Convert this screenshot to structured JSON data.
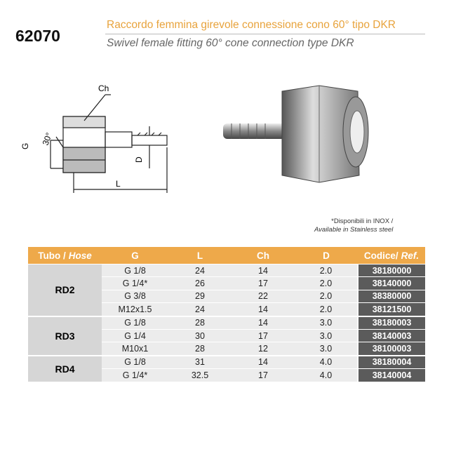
{
  "header": {
    "code": "62070",
    "title_it": "Raccordo femmina girevole connessione cono 60° tipo DKR",
    "title_en": "Swivel female fitting  60° cone connection type DKR"
  },
  "drawing": {
    "ch": "Ch",
    "g": "G",
    "angle": "30°",
    "d": "D",
    "l": "L"
  },
  "note": {
    "it": "*Disponibili in INOX /",
    "en": "Available in Stainless steel"
  },
  "table": {
    "header": [
      [
        "Tubo /",
        "Hose"
      ],
      [
        "G"
      ],
      [
        "L"
      ],
      [
        "Ch"
      ],
      [
        "D"
      ],
      [
        "Codice/",
        "Ref."
      ]
    ],
    "groups": [
      {
        "hose": "RD2",
        "rows": [
          [
            "G 1/8",
            "24",
            "14",
            "2.0",
            "38180000"
          ],
          [
            "G 1/4*",
            "26",
            "17",
            "2.0",
            "38140000"
          ],
          [
            "G 3/8",
            "29",
            "22",
            "2.0",
            "38380000"
          ],
          [
            "M12x1.5",
            "24",
            "14",
            "2.0",
            "38121500"
          ]
        ]
      },
      {
        "hose": "RD3",
        "rows": [
          [
            "G 1/8",
            "28",
            "14",
            "3.0",
            "38180003"
          ],
          [
            "G 1/4",
            "30",
            "17",
            "3.0",
            "38140003"
          ],
          [
            "M10x1",
            "28",
            "12",
            "3.0",
            "38100003"
          ]
        ]
      },
      {
        "hose": "RD4",
        "rows": [
          [
            "G 1/8",
            "31",
            "14",
            "4.0",
            "38180004"
          ],
          [
            "G 1/4*",
            "32.5",
            "17",
            "4.0",
            "38140004"
          ]
        ]
      }
    ]
  }
}
